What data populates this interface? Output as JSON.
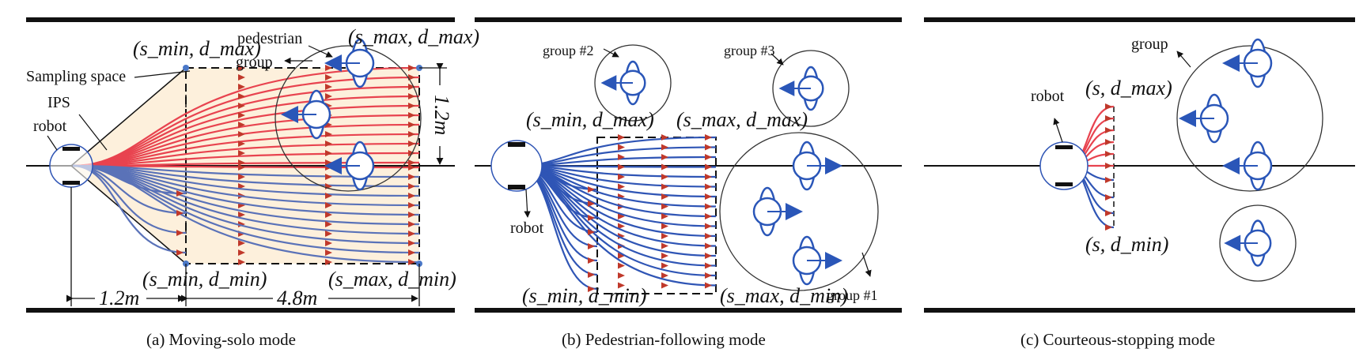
{
  "panels": [
    {
      "caption": "(a)  Moving-solo mode",
      "labels": {
        "pedestrian": "pedestrian",
        "group": "group",
        "sampling_space": "Sampling space",
        "ips": "IPS",
        "robot": "robot",
        "s_min_d_max": "(s_min, d_max)",
        "s_max_d_max": "(s_max, d_max)",
        "s_min_d_min": "(s_min, d_min)",
        "s_max_d_min": "(s_max, d_min)",
        "dim_height": "1.2m",
        "dim_left": "1.2m",
        "dim_right": "4.8m"
      }
    },
    {
      "caption": "(b)  Pedestrian-following mode",
      "labels": {
        "group2": "group #2",
        "group3": "group #3",
        "group1": "group #1",
        "robot": "robot",
        "s_min_d_max": "(s_min, d_max)",
        "s_max_d_max": "(s_max, d_max)",
        "s_min_d_min": "(s_min, d_min)",
        "s_max_d_min": "(s_max, d_min)"
      }
    },
    {
      "caption": "(c)  Courteous-stopping mode",
      "labels": {
        "group": "group",
        "robot": "robot",
        "s_d_max": "(s, d_max)",
        "s_d_min": "(s, d_min)"
      }
    }
  ],
  "colors": {
    "road": "#111111",
    "trajectory_red": "#e8434f",
    "trajectory_blue": "#2f55b5",
    "pedestrian": "#2a56b8",
    "sampling_fill": "#fdf0dc",
    "arrow_marker": "#c0392b"
  }
}
